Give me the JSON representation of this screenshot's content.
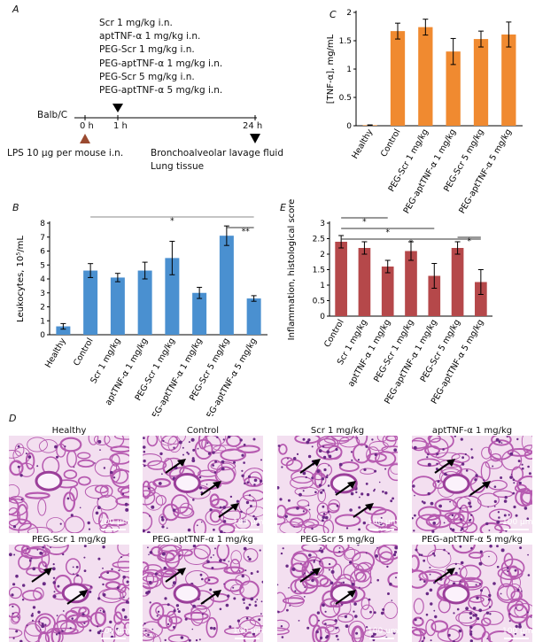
{
  "panel_labels": {
    "a": "A",
    "b": "B",
    "c": "C",
    "d": "D",
    "e": "E"
  },
  "timeline": {
    "treatments": [
      "Scr 1 mg/kg i.n.",
      "aptTNF-α 1 mg/kg i.n.",
      "PEG-Scr 1 mg/kg i.n.",
      "PEG-aptTNF-α 1 mg/kg i.n.",
      "PEG-Scr 5 mg/kg i.n.",
      "PEG-aptTNF-α 5 mg/kg i.n."
    ],
    "strain": "Balb/C",
    "t0": "0 h",
    "t1": "1 h",
    "t24": "24 h",
    "lps": "LPS 10 μg per mouse i.n.",
    "end1": "Bronchoalveolar lavage fluid",
    "end2": "Lung tissue"
  },
  "chart_data": [
    {
      "id": "B",
      "type": "bar",
      "color": "#4a90d0",
      "ylabel": "Leukocytes, 10⁵/mL",
      "ylim": [
        0,
        8
      ],
      "yticks": [
        0,
        1,
        2,
        3,
        4,
        5,
        6,
        7,
        8
      ],
      "categories": [
        "Healthy",
        "Control",
        "Scr 1 mg/kg",
        "aptTNF-α 1 mg/kg",
        "PEG-Scr 1 mg/kg",
        "PEG-aptTNF-α 1 mg/kg",
        "PEG-Scr 5 mg/kg",
        "PEG-aptTNF-α 5 mg/kg"
      ],
      "values": [
        0.6,
        4.6,
        4.1,
        4.6,
        5.5,
        3.0,
        7.1,
        2.6
      ],
      "errors": [
        0.2,
        0.5,
        0.3,
        0.6,
        1.2,
        0.4,
        0.7,
        0.2
      ],
      "significance": [
        {
          "from": 1,
          "to": 7,
          "label": "*"
        },
        {
          "from": 6,
          "to": 7,
          "label": "**"
        }
      ]
    },
    {
      "id": "C",
      "type": "bar",
      "color": "#f08a30",
      "ylabel": "[TNF-α], mg/mL",
      "ylim": [
        0,
        2
      ],
      "yticks": [
        0,
        0.5,
        1,
        1.5,
        2
      ],
      "categories": [
        "Healthy",
        "Control",
        "PEG-Scr 1 mg/kg",
        "PEG-aptTNF-α 1 mg/kg",
        "PEG-Scr 5 mg/kg",
        "PEG-aptTNF-α 5 mg/kg"
      ],
      "values": [
        0.01,
        1.67,
        1.74,
        1.31,
        1.53,
        1.61
      ],
      "errors": [
        0.005,
        0.14,
        0.14,
        0.23,
        0.14,
        0.22
      ],
      "significance": []
    },
    {
      "id": "E",
      "type": "bar",
      "color": "#b5484a",
      "ylabel": "Inflammation, histological score",
      "ylim": [
        0,
        3
      ],
      "yticks": [
        0,
        0.5,
        1,
        1.5,
        2,
        2.5,
        3
      ],
      "categories": [
        "Control",
        "Scr 1 mg/kg",
        "aptTNF-α 1 mg/kg",
        "PEG-Scr 1 mg/kg",
        "PEG-aptTNF-α 1 mg/kg",
        "PEG-Scr 5 mg/kg",
        "PEG-aptTNF-α 5 mg/kg"
      ],
      "values": [
        2.4,
        2.2,
        1.6,
        2.1,
        1.3,
        2.2,
        1.1
      ],
      "errors": [
        0.2,
        0.2,
        0.2,
        0.3,
        0.4,
        0.2,
        0.4
      ],
      "significance": [
        {
          "from": 0,
          "to": 2,
          "label": "*"
        },
        {
          "from": 0,
          "to": 4,
          "label": "*"
        },
        {
          "from": 0,
          "to": 6,
          "label": "*"
        },
        {
          "from": 5,
          "to": 6,
          "label": "*"
        }
      ]
    }
  ],
  "micrographs": [
    {
      "title": "Healthy",
      "scale": "100 μm",
      "arrows": 0
    },
    {
      "title": "Control",
      "scale": "100 μm",
      "arrows": 3
    },
    {
      "title": "Scr 1 mg/kg",
      "scale": "100 μm",
      "arrows": 3
    },
    {
      "title": "aptTNF-α 1 mg/kg",
      "scale": "100 μm",
      "arrows": 2
    },
    {
      "title": "PEG-Scr 1 mg/kg",
      "scale": "100 μm",
      "arrows": 2
    },
    {
      "title": "PEG-aptTNF-α 1 mg/kg",
      "scale": "100 μm",
      "arrows": 2
    },
    {
      "title": "PEG-Scr 5 mg/kg",
      "scale": "100 μm",
      "arrows": 2
    },
    {
      "title": "PEG-aptTNF-α 5 mg/kg",
      "scale": "100 μm",
      "arrows": 1
    }
  ]
}
